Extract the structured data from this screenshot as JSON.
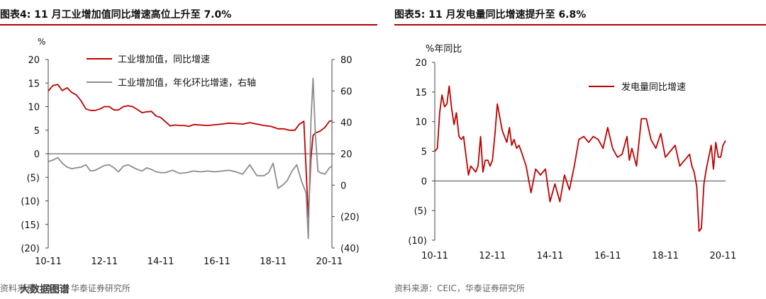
{
  "left": {
    "title": "图表4:  11 月工业增加值同比增速高位上升至 7.0%",
    "source": "资料来源：CEIC，华泰证券研究所",
    "watermark": "大数据图谱",
    "unit_label": "%",
    "chart_data": {
      "type": "line",
      "title": "11 月工业增加值同比增速高位上升至 7.0%",
      "x_tick_labels": [
        "10-11",
        "12-11",
        "14-11",
        "16-11",
        "18-11",
        "20-11"
      ],
      "y_left_tick_labels": [
        "20",
        "15",
        "10",
        "5",
        "0",
        "(5)",
        "(10)",
        "(15)",
        "(20)"
      ],
      "y_right_tick_labels": [
        "80",
        "60",
        "40",
        "20",
        "0",
        "(20)",
        "(40)"
      ],
      "ylim_left": [
        -20,
        20
      ],
      "ylim_right": [
        -40,
        80
      ],
      "xlim": [
        2010.83,
        2020.92
      ],
      "legend_position": "top-center",
      "series": [
        {
          "name": "工业增加值，同比增速",
          "axis": "left",
          "color": "#c00000",
          "x": [
            2010.83,
            2011.0,
            2011.17,
            2011.33,
            2011.5,
            2011.67,
            2011.83,
            2012.0,
            2012.17,
            2012.33,
            2012.5,
            2012.67,
            2012.83,
            2013.0,
            2013.17,
            2013.33,
            2013.5,
            2013.67,
            2013.83,
            2014.0,
            2014.17,
            2014.33,
            2014.5,
            2014.67,
            2014.83,
            2015.0,
            2015.17,
            2015.33,
            2015.5,
            2015.67,
            2015.83,
            2016.0,
            2016.5,
            2017.0,
            2017.25,
            2017.5,
            2017.75,
            2018.0,
            2018.5,
            2018.75,
            2018.9,
            2019.0,
            2019.2,
            2019.4,
            2019.6,
            2019.75,
            2019.92,
            2020.08,
            2020.17,
            2020.25,
            2020.33,
            2020.5,
            2020.67,
            2020.83,
            2020.92
          ],
          "values": [
            13.3,
            14.5,
            14.7,
            13.4,
            14.0,
            13.0,
            12.5,
            11.2,
            9.5,
            9.2,
            9.2,
            9.5,
            10.0,
            10.0,
            9.3,
            9.3,
            10.0,
            10.2,
            10.0,
            9.4,
            8.7,
            8.9,
            9.0,
            8.0,
            7.7,
            6.8,
            5.9,
            6.1,
            6.0,
            6.0,
            5.8,
            6.2,
            6.0,
            6.3,
            6.5,
            6.4,
            6.3,
            6.6,
            6.0,
            5.8,
            5.5,
            5.3,
            5.3,
            5.0,
            5.0,
            6.2,
            6.9,
            -13.5,
            -1.1,
            3.9,
            4.4,
            4.8,
            5.6,
            6.9,
            7.0
          ]
        },
        {
          "name": "工业增加值，年化环比增速，右轴",
          "axis": "right",
          "color": "#8c8c8c",
          "x": [
            2010.83,
            2011.0,
            2011.17,
            2011.33,
            2011.5,
            2011.67,
            2011.83,
            2012.0,
            2012.17,
            2012.33,
            2012.5,
            2012.67,
            2012.83,
            2013.0,
            2013.17,
            2013.33,
            2013.5,
            2013.67,
            2013.83,
            2014.0,
            2014.17,
            2014.33,
            2014.5,
            2014.67,
            2014.83,
            2015.0,
            2015.25,
            2015.5,
            2015.75,
            2016.0,
            2016.25,
            2016.5,
            2016.75,
            2017.0,
            2017.25,
            2017.5,
            2017.75,
            2018.0,
            2018.25,
            2018.5,
            2018.67,
            2018.83,
            2019.0,
            2019.17,
            2019.33,
            2019.5,
            2019.67,
            2019.83,
            2020.0,
            2020.08,
            2020.17,
            2020.25,
            2020.33,
            2020.42,
            2020.5,
            2020.67,
            2020.83,
            2020.92
          ],
          "values": [
            15.0,
            16.0,
            17.5,
            14.0,
            11.5,
            10.5,
            11.0,
            11.5,
            13.0,
            9.0,
            9.5,
            11.0,
            12.5,
            13.0,
            11.0,
            8.5,
            12.0,
            13.0,
            11.5,
            10.0,
            9.0,
            11.0,
            10.0,
            8.5,
            8.0,
            8.0,
            9.5,
            7.5,
            8.0,
            9.0,
            8.5,
            9.0,
            8.5,
            9.0,
            9.5,
            8.5,
            7.0,
            13.0,
            6.0,
            6.0,
            8.0,
            14.0,
            -2.0,
            0.0,
            3.0,
            9.0,
            13.0,
            3.0,
            -5.0,
            -34.0,
            40.0,
            68.0,
            33.0,
            9.0,
            8.0,
            7.0,
            11.0,
            12.0
          ]
        }
      ]
    }
  },
  "right": {
    "title": "图表5:  11 月发电量同比增速提升至 6.8%",
    "source": "资料来源：CEIC，华泰证券研究所",
    "unit_label": "%年同比",
    "chart_data": {
      "type": "line",
      "title": "11 月发电量同比增速提升至 6.8%",
      "x_tick_labels": [
        "10-11",
        "12-11",
        "14-11",
        "16-11",
        "18-11",
        "20-11"
      ],
      "y_tick_labels": [
        "20",
        "15",
        "10",
        "5",
        "0",
        "(5)",
        "(10)"
      ],
      "ylim": [
        -10,
        20
      ],
      "xlim": [
        2010.83,
        2020.92
      ],
      "legend_position": "top-center",
      "series": [
        {
          "name": "发电量同比增速",
          "color": "#c00000",
          "x": [
            2010.83,
            2010.92,
            2011.0,
            2011.08,
            2011.17,
            2011.25,
            2011.33,
            2011.42,
            2011.5,
            2011.58,
            2011.67,
            2011.75,
            2011.83,
            2011.92,
            2012.0,
            2012.08,
            2012.17,
            2012.25,
            2012.33,
            2012.42,
            2012.5,
            2012.58,
            2012.67,
            2012.75,
            2012.83,
            2012.92,
            2013.0,
            2013.17,
            2013.33,
            2013.42,
            2013.5,
            2013.58,
            2013.67,
            2013.75,
            2013.83,
            2014.0,
            2014.17,
            2014.33,
            2014.5,
            2014.58,
            2014.67,
            2014.83,
            2015.0,
            2015.17,
            2015.33,
            2015.5,
            2015.67,
            2015.83,
            2016.0,
            2016.17,
            2016.33,
            2016.5,
            2016.67,
            2016.83,
            2017.0,
            2017.17,
            2017.33,
            2017.5,
            2017.58,
            2017.67,
            2017.83,
            2018.0,
            2018.17,
            2018.33,
            2018.5,
            2018.67,
            2018.83,
            2019.0,
            2019.17,
            2019.33,
            2019.5,
            2019.67,
            2019.75,
            2019.83,
            2019.92,
            2020.0,
            2020.08,
            2020.17,
            2020.25,
            2020.42,
            2020.5,
            2020.58,
            2020.67,
            2020.75,
            2020.83,
            2020.92
          ],
          "values": [
            5.0,
            5.5,
            11.5,
            14.5,
            12.5,
            13.0,
            16.0,
            12.0,
            9.5,
            11.5,
            7.5,
            7.0,
            7.5,
            4.0,
            1.0,
            2.5,
            2.0,
            1.5,
            2.5,
            7.5,
            1.5,
            3.5,
            3.5,
            2.5,
            3.5,
            8.0,
            13.0,
            8.5,
            6.5,
            9.0,
            6.0,
            7.0,
            5.5,
            6.0,
            5.0,
            2.5,
            -2.0,
            2.0,
            1.0,
            1.5,
            2.0,
            -3.5,
            -0.5,
            -3.5,
            1.0,
            -1.5,
            2.5,
            7.0,
            7.5,
            6.5,
            7.5,
            7.0,
            5.5,
            9.0,
            5.5,
            4.0,
            4.5,
            7.5,
            3.5,
            5.5,
            2.5,
            10.5,
            10.5,
            7.0,
            5.5,
            8.0,
            4.0,
            5.0,
            6.0,
            2.5,
            3.5,
            4.5,
            2.5,
            1.5,
            -1.0,
            -8.5,
            -8.0,
            -0.5,
            2.0,
            6.0,
            2.0,
            6.5,
            4.0,
            4.0,
            6.0,
            6.8
          ]
        }
      ]
    }
  }
}
